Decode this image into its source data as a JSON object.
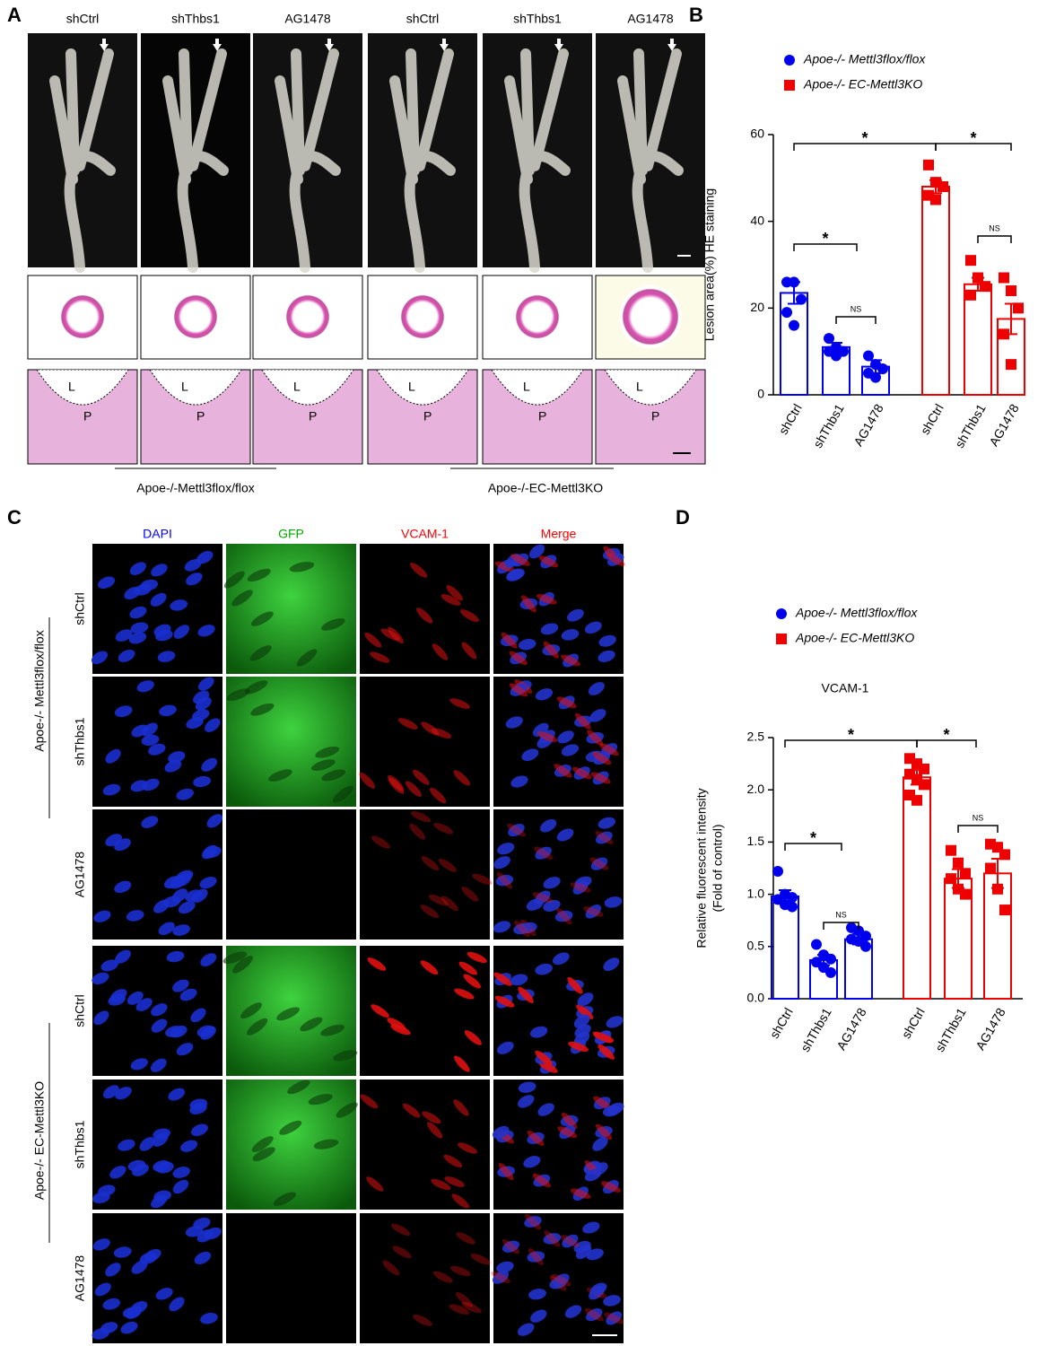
{
  "panel_a": {
    "label": "A",
    "columns": [
      "shCtrl",
      "shThbs1",
      "AG1478",
      "shCtrl",
      "shThbs1",
      "AG1478"
    ],
    "lumen": "L",
    "plaque": "P",
    "groups": [
      "Apoe-/-Mettl3flox/flox",
      "Apoe-/-EC-Mettl3KO"
    ]
  },
  "panel_c": {
    "label": "C",
    "columns": [
      "DAPI",
      "GFP",
      "VCAM-1",
      "Merge"
    ],
    "rows": [
      "shCtrl",
      "shThbs1",
      "AG1478"
    ],
    "groups": [
      "Apoe-/- Mettl3flox/flox",
      "Apoe-/- EC-Mettl3KO"
    ]
  },
  "chart_data": [
    {
      "type": "bar",
      "panel": "B",
      "ylabel": [
        "Lesion area(%) HE staining"
      ],
      "categories": [
        "shCtrl",
        "shThbs1",
        "AG1478"
      ],
      "ylim": [
        0,
        60
      ],
      "yticks": [
        0,
        20,
        40,
        60
      ],
      "annotations": [
        "*",
        "*",
        "*",
        "NS",
        "NS"
      ],
      "series": [
        {
          "name": "Apoe-/- Mettl3flox/flox",
          "color": "#0000ee",
          "marker": "circle",
          "values": [
            23.5,
            11,
            6.5
          ],
          "errors": [
            2.5,
            1,
            1.5
          ],
          "points": [
            [
              26,
              26,
              22,
              19,
              16
            ],
            [
              13,
              11,
              10,
              10,
              9
            ],
            [
              9,
              7,
              6,
              5,
              4
            ]
          ]
        },
        {
          "name": "Apoe-/- EC-Mettl3KO",
          "color": "#ee0000",
          "marker": "square",
          "values": [
            48,
            25.5,
            17.5
          ],
          "errors": [
            1.5,
            1.5,
            3.5
          ],
          "points": [
            [
              53,
              49,
              48,
              46,
              45
            ],
            [
              31,
              27,
              25,
              23
            ],
            [
              27,
              24,
              20,
              14,
              7
            ]
          ]
        }
      ]
    },
    {
      "type": "bar",
      "panel": "D",
      "title": "VCAM-1",
      "ylabel": [
        "Relative fluorescent intensity",
        "(Fold of control)"
      ],
      "categories": [
        "shCtrl",
        "shThbs1",
        "AG1478"
      ],
      "ylim": [
        0,
        2.5
      ],
      "yticks": [
        {
          "value": 0,
          "label": "0.0"
        },
        0.5,
        {
          "value": 1,
          "label": "1.0"
        },
        1.5,
        {
          "value": 2,
          "label": "2.0"
        },
        2.5
      ],
      "annotations": [
        "*",
        "*",
        "*",
        "NS",
        "NS"
      ],
      "series": [
        {
          "name": "Apoe-/- Mettl3flox/flox",
          "color": "#0000ee",
          "marker": "circle",
          "values": [
            0.98,
            0.37,
            0.57
          ],
          "errors": [
            0.06,
            0.05,
            0.05
          ],
          "points": [
            [
              1.22,
              1.0,
              0.97,
              0.95,
              0.9,
              0.88
            ],
            [
              0.52,
              0.42,
              0.38,
              0.35,
              0.3,
              0.25
            ],
            [
              0.68,
              0.65,
              0.6,
              0.57,
              0.55,
              0.5
            ]
          ]
        },
        {
          "name": "Apoe-/- EC-Mettl3KO",
          "color": "#ee0000",
          "marker": "square",
          "values": [
            2.12,
            1.15,
            1.2
          ],
          "errors": [
            0.07,
            0.09,
            0.14
          ],
          "points": [
            [
              2.3,
              2.25,
              2.2,
              2.15,
              2.1,
              2.05,
              1.95,
              1.9
            ],
            [
              1.42,
              1.3,
              1.2,
              1.15,
              1.05,
              1.0
            ],
            [
              1.48,
              1.45,
              1.38,
              1.25,
              1.05,
              0.85
            ]
          ]
        }
      ]
    }
  ]
}
